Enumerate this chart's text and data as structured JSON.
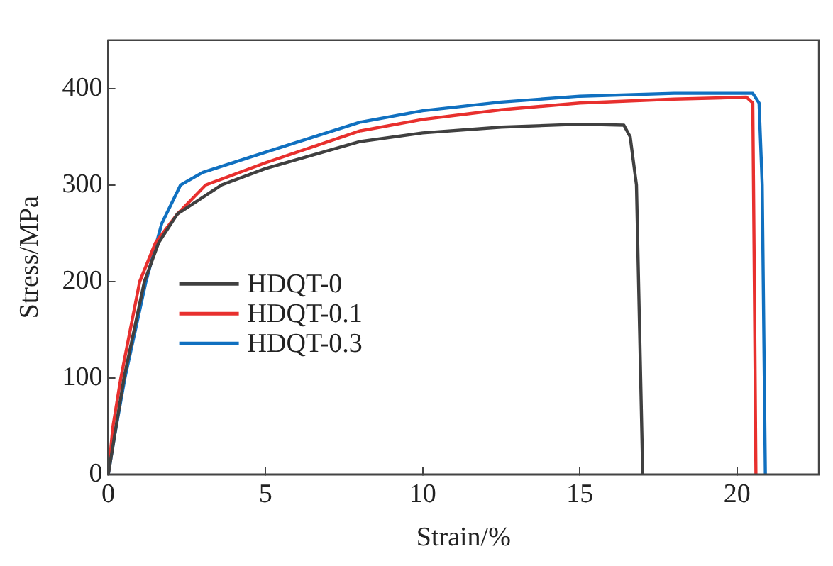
{
  "chart_data": {
    "type": "line",
    "xlabel": "Strain/%",
    "ylabel": "Stress/MPa",
    "xlim": [
      0,
      22.6
    ],
    "xticks": [
      0,
      5,
      10,
      15,
      20
    ],
    "ylim": [
      0,
      450
    ],
    "yticks": [
      0,
      100,
      200,
      300,
      400
    ],
    "grid": false,
    "legend": "left",
    "marker": "none",
    "line_style": "solid",
    "series": [
      {
        "name": "HDQT-0",
        "color": "#404040",
        "x": [
          0,
          0.2,
          0.5,
          1.15,
          1.6,
          2.2,
          3.6,
          5,
          8,
          10,
          12.5,
          15,
          16.4,
          16.6,
          16.8,
          16.9,
          17.0
        ],
        "values": [
          0,
          40,
          100,
          200,
          240,
          270,
          300,
          317,
          345,
          354,
          360,
          363,
          362,
          350,
          300,
          150,
          0
        ]
      },
      {
        "name": "HDQT-0.1",
        "color": "#e8302e",
        "x": [
          0,
          0.15,
          0.4,
          1.0,
          1.5,
          2.2,
          3.1,
          5,
          8,
          10,
          12.5,
          15,
          18,
          20.3,
          20.5,
          20.55,
          20.6
        ],
        "values": [
          0,
          50,
          100,
          200,
          240,
          270,
          300,
          323,
          356,
          368,
          378,
          385,
          389,
          391,
          385,
          200,
          0
        ]
      },
      {
        "name": "HDQT-0.3",
        "color": "#1070c0",
        "x": [
          0,
          0.2,
          0.53,
          1.2,
          1.7,
          2.3,
          3,
          5,
          8,
          10,
          12.5,
          15,
          18,
          20.5,
          20.7,
          20.8,
          20.9
        ],
        "values": [
          0,
          40,
          100,
          200,
          260,
          300,
          313,
          334,
          365,
          377,
          386,
          392,
          395,
          395,
          385,
          300,
          0
        ]
      }
    ]
  }
}
